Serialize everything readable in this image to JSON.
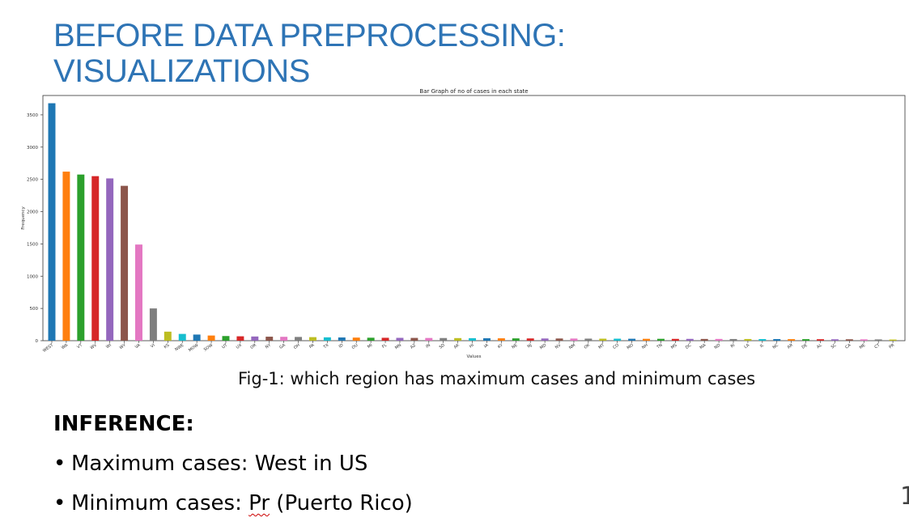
{
  "slide": {
    "title_line1": "BEFORE DATA PREPROCESSING:",
    "title_line2": "VISUALIZATIONS",
    "caption": "Fig-1: which region has maximum cases and minimum cases",
    "inference_heading": "INFERENCE:",
    "bullet_char": "•",
    "bullet1": "Maximum cases:  West in US",
    "bullet2_prefix": "Minimum cases: ",
    "bullet2_abbrev": "Pr",
    "bullet2_suffix": " (Puerto Rico)",
    "page_number": "1"
  },
  "colors": {
    "title": "#2e74b5",
    "palette": [
      "#1f77b4",
      "#ff7f0e",
      "#2ca02c",
      "#d62728",
      "#9467bd",
      "#8c564b",
      "#e377c2",
      "#7f7f7f",
      "#bcbd22",
      "#17becf"
    ]
  },
  "chart_data": {
    "type": "bar",
    "title": "Bar Graph of no of cases in each state",
    "xlabel": "Values",
    "ylabel": "Frequency",
    "ylim": [
      0,
      3800
    ],
    "yticks": [
      0,
      500,
      1000,
      1500,
      2000,
      2500,
      3000,
      3500
    ],
    "grid": false,
    "categories": [
      "WEST",
      "WA",
      "VT",
      "WV",
      "WI",
      "WY",
      "VA",
      "VI",
      "KS",
      "NWE",
      "MOW",
      "SOW",
      "UT",
      "UX",
      "OR",
      "NY",
      "GA",
      "OH",
      "PA",
      "TX",
      "ID",
      "OU",
      "MI",
      "FL",
      "MN",
      "AZ",
      "IN",
      "SD",
      "AK",
      "HI",
      "IA",
      "KY",
      "NE",
      "NJ",
      "MD",
      "NV",
      "NM",
      "OK",
      "MT",
      "CO",
      "MO",
      "NH",
      "TN",
      "MS",
      "DC",
      "MA",
      "ND",
      "RI",
      "LA",
      "IL",
      "NC",
      "AR",
      "DE",
      "AL",
      "SC",
      "CA",
      "ME",
      "CT",
      "PR"
    ],
    "values": [
      3680,
      2620,
      2575,
      2550,
      2515,
      2400,
      1490,
      500,
      140,
      105,
      95,
      80,
      72,
      68,
      65,
      62,
      60,
      58,
      55,
      52,
      50,
      48,
      46,
      45,
      44,
      43,
      42,
      41,
      40,
      39,
      38,
      37,
      36,
      35,
      34,
      34,
      33,
      32,
      31,
      31,
      30,
      29,
      29,
      28,
      28,
      27,
      27,
      26,
      26,
      25,
      25,
      24,
      24,
      23,
      22,
      22,
      21,
      20,
      18
    ]
  }
}
